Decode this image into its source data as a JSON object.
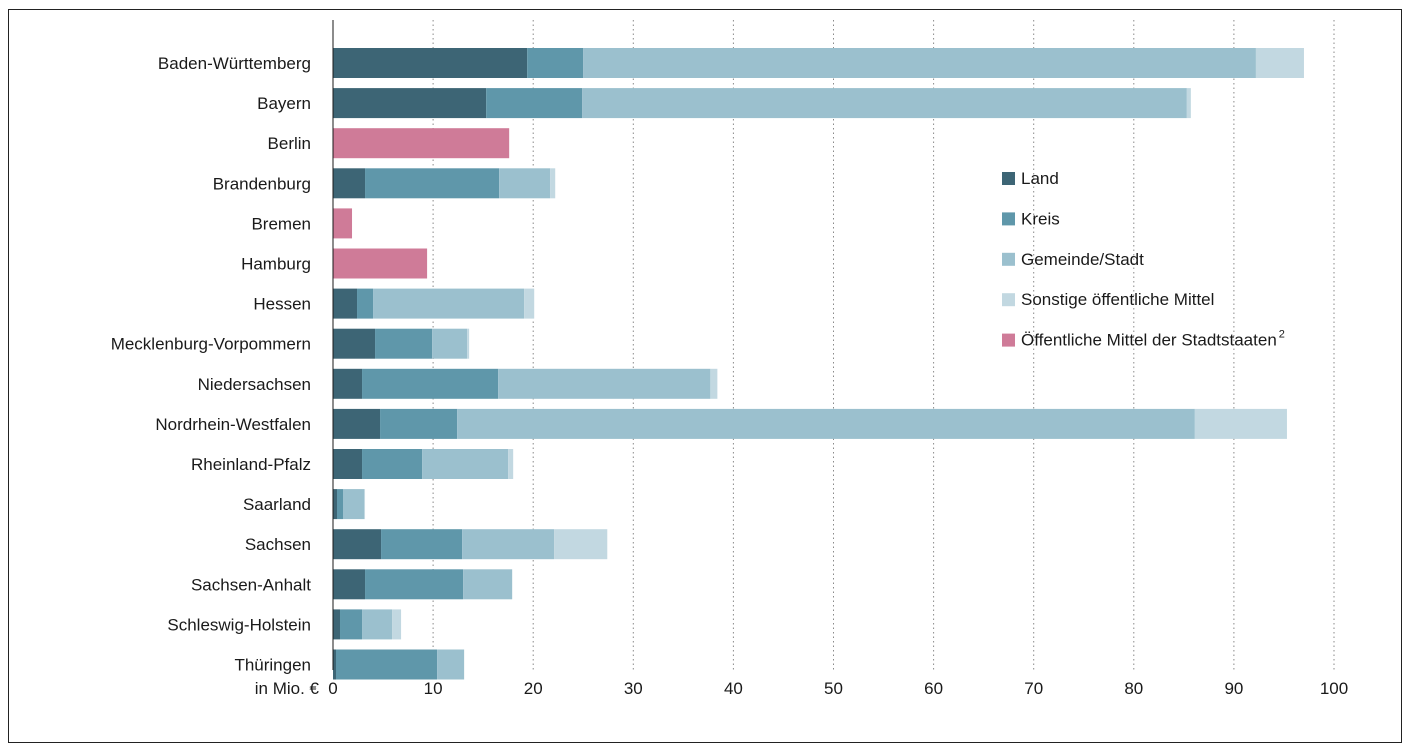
{
  "chart_data": {
    "type": "bar",
    "orientation": "horizontal",
    "stacked": true,
    "xlabel": "in Mio. €",
    "xlim": [
      0,
      100
    ],
    "xticks": [
      0,
      10,
      20,
      30,
      40,
      50,
      60,
      70,
      80,
      90,
      100
    ],
    "grid": "vertical dotted",
    "legend_position": "right",
    "categories": [
      "Baden-Württemberg",
      "Bayern",
      "Berlin",
      "Brandenburg",
      "Bremen",
      "Hamburg",
      "Hessen",
      "Mecklenburg-Vorpommern",
      "Niedersachsen",
      "Nordrhein-Westfalen",
      "Rheinland-Pfalz",
      "Saarland",
      "Sachsen",
      "Sachsen-Anhalt",
      "Schleswig-Holstein",
      "Thüringen"
    ],
    "series": [
      {
        "name": "Land",
        "color": "#3d6575",
        "values": [
          19.4,
          15.3,
          0,
          3.2,
          0,
          0,
          2.4,
          4.2,
          2.9,
          4.7,
          2.9,
          0.4,
          4.8,
          3.2,
          0.7,
          0.3
        ]
      },
      {
        "name": "Kreis",
        "color": "#5f97aa",
        "values": [
          5.6,
          9.6,
          0,
          13.4,
          0,
          0,
          1.6,
          5.7,
          13.6,
          7.7,
          6.0,
          0.6,
          8.1,
          9.8,
          2.2,
          10.1
        ]
      },
      {
        "name": "Gemeinde/Stadt",
        "color": "#9bc0ce",
        "values": [
          67.2,
          60.4,
          0,
          5.1,
          0,
          0,
          15.1,
          3.5,
          21.2,
          73.7,
          8.6,
          2.1,
          9.2,
          4.9,
          3.0,
          2.7
        ]
      },
      {
        "name": "Sonstige öffentliche Mittel",
        "color": "#c2d8e1",
        "values": [
          4.8,
          0.4,
          0,
          0.5,
          0,
          0,
          1.0,
          0.2,
          0.7,
          9.2,
          0.5,
          0.1,
          5.3,
          0,
          0.9,
          0
        ]
      },
      {
        "name": "Öffentliche Mittel der Stadtstaaten",
        "superscript": "2",
        "color": "#cf7b98",
        "values": [
          0,
          0,
          17.6,
          0,
          1.9,
          9.4,
          0,
          0,
          0,
          0,
          0,
          0,
          0,
          0,
          0,
          0
        ]
      }
    ]
  }
}
